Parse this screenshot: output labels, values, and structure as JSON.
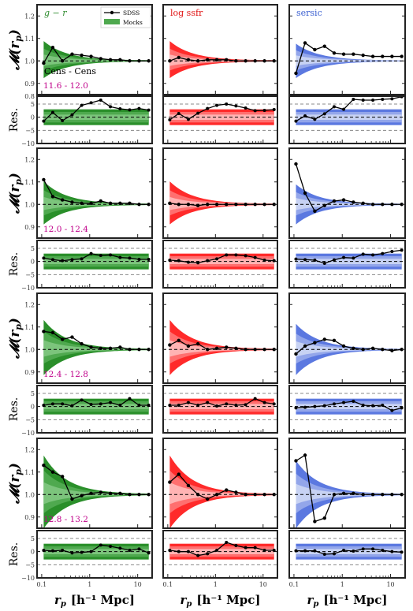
{
  "chart_data": {
    "type": "line",
    "columns": [
      {
        "label": "g − r",
        "color": "#2e8b2e",
        "light": "#7cc47c",
        "mid": "#4fa94f",
        "dark": "#2a8f2a"
      },
      {
        "label": "log ssfr",
        "color": "#e01010",
        "light": "#ffb3b3",
        "mid": "#ff6f6f",
        "dark": "#ff2a2a"
      },
      {
        "label": "sersic",
        "color": "#3a5fd0",
        "light": "#c7d2f3",
        "mid": "#93a6ea",
        "dark": "#5b78e0"
      }
    ],
    "rows": [
      "11.6 - 12.0",
      "12.0 - 12.4",
      "12.4 - 12.8",
      "12.8 - 13.2"
    ],
    "annotation": "Cens - Cens",
    "legend": {
      "sdss": "SDSS",
      "mocks": "Mocks"
    },
    "ylabel_top": "𝓜(r",
    "ylabel_sub": "p",
    "ylabel_close": ")",
    "ylabel_bottom": "Res.",
    "xlabel": "r_p  [h⁻¹ Mpc]",
    "xlabel_main": "r",
    "xlabel_sub": "p",
    "xlabel_units": "[h⁻¹ Mpc]",
    "top_ylim": [
      0.85,
      1.25
    ],
    "top_yticks": [
      "0.9",
      "1.0",
      "1.1",
      "1.2"
    ],
    "res_ylim": [
      -10,
      8
    ],
    "res_yticks": [
      "−10",
      "−5",
      "0",
      "5",
      "0.8"
    ],
    "xlim": [
      0.08,
      20
    ],
    "xticks": [
      "0.1",
      "1",
      "10"
    ],
    "x": [
      0.11,
      0.17,
      0.27,
      0.43,
      0.68,
      1.07,
      1.7,
      2.7,
      4.3,
      6.8,
      10.7,
      17
    ],
    "series": [
      [
        {
          "values": [
            0.99,
            1.06,
            1.0,
            1.03,
            1.025,
            1.02,
            1.01,
            1.005,
            1.005,
            1.0,
            1.0,
            1.0
          ],
          "res": [
            -1.5,
            1.8,
            -1.3,
            0.9,
            4.5,
            5.5,
            6.5,
            4.0,
            3.2,
            2.8,
            3.3,
            2.7
          ]
        },
        {
          "values": [
            1.0,
            1.015,
            1.005,
            1.0,
            1.005,
            1.005,
            1.005,
            1.0,
            1.0,
            1.0,
            1.0,
            1.0
          ],
          "res": [
            -1.0,
            1.4,
            -0.8,
            1.5,
            3.3,
            4.5,
            5.0,
            4.3,
            3.5,
            2.5,
            2.6,
            2.9
          ]
        },
        {
          "values": [
            0.945,
            1.08,
            1.05,
            1.065,
            1.035,
            1.03,
            1.03,
            1.025,
            1.02,
            1.02,
            1.02,
            1.02
          ],
          "res": [
            -1.5,
            0.5,
            -0.8,
            1.3,
            4.0,
            3.0,
            6.8,
            6.5,
            6.5,
            6.8,
            7.0,
            7.8
          ]
        }
      ],
      [
        {
          "values": [
            1.11,
            1.035,
            1.02,
            1.01,
            1.005,
            1.005,
            1.015,
            1.005,
            1.005,
            1.005,
            1.0,
            1.0
          ],
          "res": [
            1.3,
            0.7,
            0.3,
            0.7,
            1.0,
            3.0,
            2.3,
            2.5,
            1.5,
            1.3,
            0.8,
            0.8
          ]
        },
        {
          "values": [
            1.005,
            1.0,
            1.0,
            0.995,
            1.0,
            1.0,
            1.0,
            1.0,
            1.0,
            1.0,
            1.0,
            1.0
          ],
          "res": [
            0.5,
            0.3,
            -0.3,
            -0.5,
            0.3,
            1.0,
            2.5,
            2.5,
            2.2,
            1.5,
            0.5,
            0.3
          ]
        },
        {
          "values": [
            1.18,
            1.05,
            0.97,
            0.995,
            1.015,
            1.02,
            1.01,
            1.005,
            1.0,
            1.0,
            1.0,
            1.0
          ],
          "res": [
            0.9,
            0.7,
            0.5,
            -0.7,
            0.6,
            1.5,
            1.3,
            2.8,
            2.5,
            3.0,
            3.8,
            4.3
          ]
        }
      ],
      [
        {
          "values": [
            1.08,
            1.075,
            1.045,
            1.055,
            1.025,
            1.01,
            1.005,
            1.005,
            1.01,
            1.0,
            1.0,
            1.0
          ],
          "res": [
            0.5,
            1.0,
            1.0,
            0.3,
            2.5,
            0.8,
            1.0,
            1.5,
            0.5,
            3.0,
            0.5,
            0.5
          ]
        },
        {
          "values": [
            1.02,
            1.04,
            1.015,
            1.025,
            1.0,
            1.005,
            1.01,
            1.005,
            1.0,
            1.0,
            1.0,
            1.0
          ],
          "res": [
            0.5,
            0.5,
            1.5,
            0.5,
            1.5,
            0.2,
            1.0,
            0.5,
            0.7,
            3.0,
            1.5,
            1.0
          ]
        },
        {
          "values": [
            0.98,
            1.015,
            1.03,
            1.045,
            1.04,
            1.015,
            1.005,
            1.0,
            1.005,
            1.0,
            0.995,
            1.0
          ],
          "res": [
            -0.5,
            -0.3,
            0.0,
            0.3,
            1.0,
            1.5,
            2.0,
            0.5,
            0.3,
            0.5,
            -1.5,
            -0.5
          ]
        }
      ],
      [
        {
          "values": [
            1.13,
            1.1,
            1.08,
            0.98,
            0.995,
            1.005,
            1.01,
            1.005,
            1.005,
            1.0,
            1.0,
            1.0
          ],
          "res": [
            0.5,
            0.3,
            0.5,
            -0.5,
            -0.3,
            0.0,
            2.5,
            2.0,
            1.3,
            0.5,
            1.0,
            -0.5
          ]
        },
        {
          "values": [
            1.055,
            1.09,
            1.04,
            1.0,
            0.98,
            1.0,
            1.02,
            1.01,
            1.0,
            1.0,
            1.0,
            1.0
          ],
          "res": [
            0.5,
            0.0,
            0.0,
            -1.5,
            -0.8,
            0.5,
            3.5,
            2.3,
            1.5,
            1.5,
            0.5,
            0.5
          ]
        },
        {
          "values": [
            1.15,
            1.175,
            0.88,
            0.895,
            1.0,
            1.005,
            1.005,
            1.0,
            1.0,
            1.0,
            1.0,
            1.0
          ],
          "res": [
            0.3,
            0.3,
            0.3,
            -1.0,
            -0.8,
            0.5,
            0.2,
            1.0,
            1.0,
            0.5,
            0.0,
            -0.2
          ]
        }
      ]
    ]
  }
}
